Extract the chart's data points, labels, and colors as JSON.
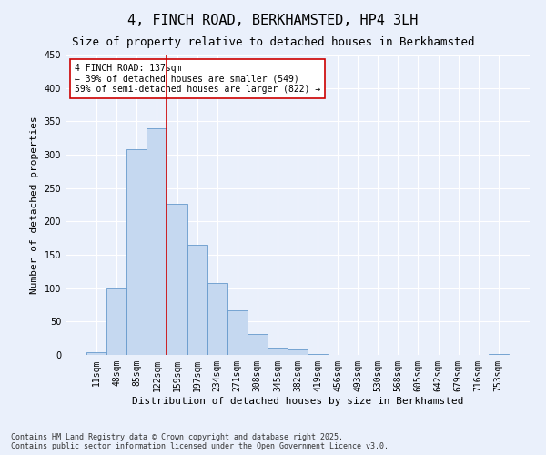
{
  "title": "4, FINCH ROAD, BERKHAMSTED, HP4 3LH",
  "subtitle": "Size of property relative to detached houses in Berkhamsted",
  "xlabel": "Distribution of detached houses by size in Berkhamsted",
  "ylabel": "Number of detached properties",
  "footer": "Contains HM Land Registry data © Crown copyright and database right 2025.\nContains public sector information licensed under the Open Government Licence v3.0.",
  "bar_labels": [
    "11sqm",
    "48sqm",
    "85sqm",
    "122sqm",
    "159sqm",
    "197sqm",
    "234sqm",
    "271sqm",
    "308sqm",
    "345sqm",
    "382sqm",
    "419sqm",
    "456sqm",
    "493sqm",
    "530sqm",
    "568sqm",
    "605sqm",
    "642sqm",
    "679sqm",
    "716sqm",
    "753sqm"
  ],
  "bar_values": [
    4,
    100,
    308,
    340,
    227,
    165,
    108,
    67,
    32,
    11,
    8,
    2,
    0,
    0,
    0,
    0,
    0,
    0,
    0,
    0,
    2
  ],
  "bar_color": "#c5d8f0",
  "bar_edge_color": "#6699cc",
  "background_color": "#eaf0fb",
  "grid_color": "#ffffff",
  "vline_color": "#cc0000",
  "vline_x_index": 3,
  "annotation_text": "4 FINCH ROAD: 137sqm\n← 39% of detached houses are smaller (549)\n59% of semi-detached houses are larger (822) →",
  "annotation_box_facecolor": "#ffffff",
  "annotation_box_edgecolor": "#cc0000",
  "ylim": [
    0,
    450
  ],
  "yticks": [
    0,
    50,
    100,
    150,
    200,
    250,
    300,
    350,
    400,
    450
  ],
  "title_fontsize": 11,
  "subtitle_fontsize": 9,
  "axis_label_fontsize": 8,
  "tick_fontsize": 7,
  "annotation_fontsize": 7,
  "footer_fontsize": 6
}
